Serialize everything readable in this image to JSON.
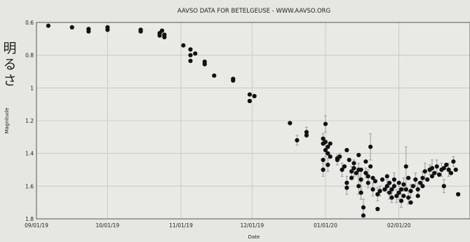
{
  "chart_data": {
    "type": "scatter",
    "title": "AAVSO DATA FOR BETELGEUSE - WWW.AAVSO.ORG",
    "xlabel": "Date",
    "ylabel": "Magnitude",
    "side_label": "明るさ",
    "y_inverted": true,
    "ylim": [
      1.8,
      0.6
    ],
    "yticks": [
      0.6,
      0.8,
      1,
      1.2,
      1.4,
      1.6,
      1.8
    ],
    "ytick_labels": [
      "0.6",
      "0.8",
      "1",
      "1.2",
      "1.4",
      "1.6",
      "1.8"
    ],
    "xlim": [
      "2019-09-01",
      "2020-03-02"
    ],
    "xticks": [
      "2019-09-01",
      "2019-10-01",
      "2019-11-01",
      "2019-12-01",
      "2020-01-01",
      "2020-02-01"
    ],
    "xtick_labels": [
      "09/01/19",
      "10/01/19",
      "11/01/19",
      "12/01/19",
      "01/01/20",
      "02/01/20"
    ],
    "grid": true,
    "colors": {
      "points": "#111111",
      "error_bars": "#9a9a9a",
      "grid": "#c4c4c4",
      "background": "#e6e6e3"
    },
    "series": [
      {
        "points": [
          [
            "2019-09-06",
            0.62,
            0
          ],
          [
            "2019-09-16",
            0.63,
            0
          ],
          [
            "2019-09-23",
            0.64,
            0
          ],
          [
            "2019-09-23",
            0.655,
            0
          ],
          [
            "2019-10-01",
            0.63,
            0
          ],
          [
            "2019-10-01",
            0.645,
            0
          ],
          [
            "2019-10-15",
            0.645,
            0
          ],
          [
            "2019-10-15",
            0.655,
            0
          ],
          [
            "2019-10-23",
            0.665,
            0
          ],
          [
            "2019-10-23",
            0.68,
            0
          ],
          [
            "2019-10-24",
            0.65,
            0
          ],
          [
            "2019-10-25",
            0.675,
            0
          ],
          [
            "2019-10-25",
            0.69,
            0
          ],
          [
            "2019-11-02",
            0.74,
            0
          ],
          [
            "2019-11-05",
            0.765,
            0
          ],
          [
            "2019-11-05",
            0.8,
            0
          ],
          [
            "2019-11-05",
            0.835,
            0
          ],
          [
            "2019-11-07",
            0.79,
            0
          ],
          [
            "2019-11-11",
            0.84,
            0
          ],
          [
            "2019-11-11",
            0.855,
            0
          ],
          [
            "2019-11-15",
            0.925,
            0
          ],
          [
            "2019-11-23",
            0.945,
            0
          ],
          [
            "2019-11-23",
            0.955,
            0
          ],
          [
            "2019-11-30",
            1.04,
            0
          ],
          [
            "2019-11-30",
            1.08,
            0
          ],
          [
            "2019-12-02",
            1.05,
            0
          ],
          [
            "2019-12-17",
            1.215,
            0
          ],
          [
            "2019-12-20",
            1.32,
            0.03
          ],
          [
            "2019-12-24",
            1.27,
            0.03
          ],
          [
            "2019-12-24",
            1.29,
            0
          ],
          [
            "2019-12-31",
            1.31,
            0.03
          ],
          [
            "2019-12-31",
            1.34,
            0
          ],
          [
            "2019-12-31",
            1.5,
            0.04
          ],
          [
            "2019-12-31",
            1.44,
            0
          ],
          [
            "2020-01-01",
            1.22,
            0.05
          ],
          [
            "2020-01-01",
            1.33,
            0
          ],
          [
            "2020-01-01",
            1.38,
            0.04
          ],
          [
            "2020-01-02",
            1.36,
            0
          ],
          [
            "2020-01-02",
            1.4,
            0
          ],
          [
            "2020-01-02",
            1.47,
            0.04
          ],
          [
            "2020-01-03",
            1.34,
            0
          ],
          [
            "2020-01-03",
            1.42,
            0
          ],
          [
            "2020-01-06",
            1.43,
            0
          ],
          [
            "2020-01-06",
            1.44,
            0.03
          ],
          [
            "2020-01-07",
            1.42,
            0.02
          ],
          [
            "2020-01-08",
            1.5,
            0.04
          ],
          [
            "2020-01-09",
            1.48,
            0
          ],
          [
            "2020-01-10",
            1.38,
            0
          ],
          [
            "2020-01-10",
            1.58,
            0.04
          ],
          [
            "2020-01-10",
            1.61,
            0.04
          ],
          [
            "2020-01-11",
            1.44,
            0
          ],
          [
            "2020-01-12",
            1.55,
            0
          ],
          [
            "2020-01-12",
            1.51,
            0.03
          ],
          [
            "2020-01-13",
            1.46,
            0
          ],
          [
            "2020-01-13",
            1.49,
            0.05
          ],
          [
            "2020-01-14",
            1.52,
            0
          ],
          [
            "2020-01-15",
            1.41,
            0
          ],
          [
            "2020-01-15",
            1.5,
            0.04
          ],
          [
            "2020-01-15",
            1.6,
            0.05
          ],
          [
            "2020-01-16",
            1.5,
            0
          ],
          [
            "2020-01-16",
            1.56,
            0.06
          ],
          [
            "2020-01-16",
            1.64,
            0.04
          ],
          [
            "2020-01-17",
            1.73,
            0.05
          ],
          [
            "2020-01-17",
            1.78,
            0
          ],
          [
            "2020-01-18",
            1.45,
            0
          ],
          [
            "2020-01-18",
            1.52,
            0.03
          ],
          [
            "2020-01-19",
            1.54,
            0.04
          ],
          [
            "2020-01-19",
            1.58,
            0.03
          ],
          [
            "2020-01-20",
            1.36,
            0.08
          ],
          [
            "2020-01-20",
            1.48,
            0
          ],
          [
            "2020-01-21",
            1.55,
            0
          ],
          [
            "2020-01-21",
            1.62,
            0.04
          ],
          [
            "2020-01-22",
            1.57,
            0
          ],
          [
            "2020-01-23",
            1.65,
            0.04
          ],
          [
            "2020-01-23",
            1.74,
            0
          ],
          [
            "2020-01-24",
            1.63,
            0.03
          ],
          [
            "2020-01-25",
            1.56,
            0
          ],
          [
            "2020-01-26",
            1.62,
            0
          ],
          [
            "2020-01-27",
            1.54,
            0
          ],
          [
            "2020-01-27",
            1.6,
            0.04
          ],
          [
            "2020-01-28",
            1.58,
            0
          ],
          [
            "2020-01-28",
            1.64,
            0.04
          ],
          [
            "2020-01-29",
            1.62,
            0
          ],
          [
            "2020-01-29",
            1.67,
            0.03
          ],
          [
            "2020-01-30",
            1.6,
            0
          ],
          [
            "2020-01-30",
            1.56,
            0.04
          ],
          [
            "2020-01-31",
            1.66,
            0.04
          ],
          [
            "2020-02-01",
            1.58,
            0
          ],
          [
            "2020-02-01",
            1.64,
            0.04
          ],
          [
            "2020-02-02",
            1.62,
            0
          ],
          [
            "2020-02-02",
            1.69,
            0.04
          ],
          [
            "2020-02-03",
            1.59,
            0.04
          ],
          [
            "2020-02-03",
            1.66,
            0
          ],
          [
            "2020-02-04",
            1.48,
            0.12
          ],
          [
            "2020-02-04",
            1.62,
            0
          ],
          [
            "2020-02-05",
            1.55,
            0
          ],
          [
            "2020-02-05",
            1.67,
            0.04
          ],
          [
            "2020-02-06",
            1.7,
            0
          ],
          [
            "2020-02-06",
            1.63,
            0.04
          ],
          [
            "2020-02-07",
            1.6,
            0
          ],
          [
            "2020-02-08",
            1.56,
            0.04
          ],
          [
            "2020-02-09",
            1.66,
            0
          ],
          [
            "2020-02-09",
            1.62,
            0.04
          ],
          [
            "2020-02-10",
            1.58,
            0
          ],
          [
            "2020-02-11",
            1.55,
            0.04
          ],
          [
            "2020-02-11",
            1.6,
            0
          ],
          [
            "2020-02-12",
            1.51,
            0.05
          ],
          [
            "2020-02-13",
            1.56,
            0
          ],
          [
            "2020-02-14",
            1.5,
            0.03
          ],
          [
            "2020-02-15",
            1.54,
            0
          ],
          [
            "2020-02-15",
            1.49,
            0.05
          ],
          [
            "2020-02-16",
            1.52,
            0
          ],
          [
            "2020-02-17",
            1.48,
            0.04
          ],
          [
            "2020-02-18",
            1.53,
            0
          ],
          [
            "2020-02-19",
            1.5,
            0.04
          ],
          [
            "2020-02-20",
            1.49,
            0
          ],
          [
            "2020-02-20",
            1.6,
            0.04
          ],
          [
            "2020-02-21",
            1.47,
            0
          ],
          [
            "2020-02-22",
            1.5,
            0.04
          ],
          [
            "2020-02-23",
            1.52,
            0
          ],
          [
            "2020-02-24",
            1.45,
            0.03
          ],
          [
            "2020-02-25",
            1.5,
            0
          ],
          [
            "2020-02-26",
            1.65,
            0
          ]
        ]
      }
    ]
  }
}
